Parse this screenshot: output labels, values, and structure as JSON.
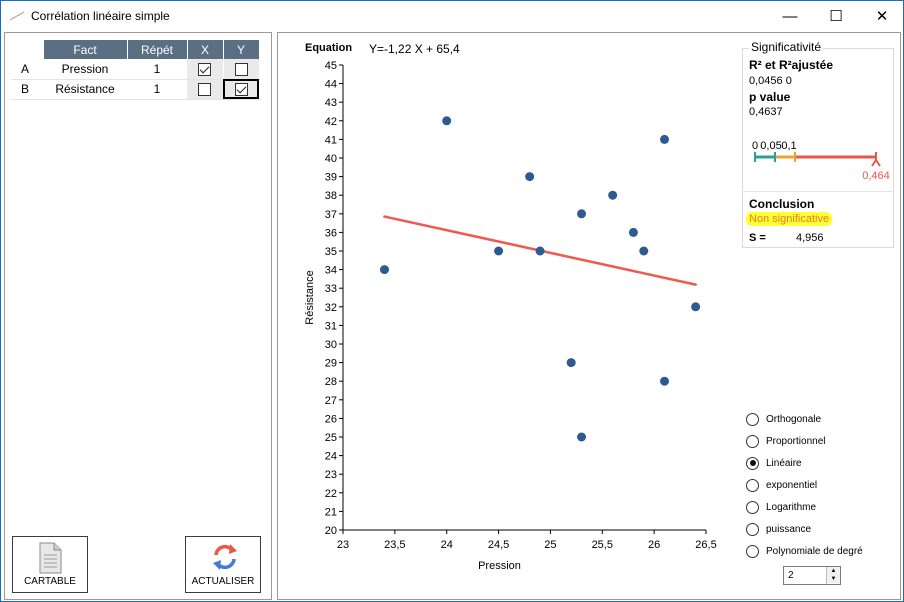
{
  "window": {
    "title": "Corrélation linéaire simple",
    "minimize": "—",
    "maximize": "☐",
    "close": "✕"
  },
  "grid": {
    "headers": [
      "Fact",
      "Répét",
      "X",
      "Y"
    ],
    "rows": [
      {
        "id": "A",
        "fact": "Pression",
        "repet": "1",
        "x": true,
        "y": false
      },
      {
        "id": "B",
        "fact": "Résistance",
        "repet": "1",
        "x": false,
        "y": true
      }
    ]
  },
  "buttons": {
    "cartable": "CARTABLE",
    "actualiser": "ACTUALISER"
  },
  "equation": {
    "label": "Equation",
    "text": "Y=-1,22 X + 65,4"
  },
  "significance": {
    "legend": "Significativité",
    "r2_label": "R² et R²ajustée",
    "r2_values": "0,0456  0",
    "p_label": "p value",
    "p_value": "0,4637",
    "scale_labels": [
      "0",
      "0,05",
      "0,1"
    ],
    "scale_value": "0,464",
    "scale_value_num": 0.464,
    "conclusion_label": "Conclusion",
    "conclusion": "Non significative",
    "s_label": "S =",
    "s_value": "4,956",
    "colors": {
      "teal": "#2aa198",
      "orange": "#f0a030",
      "red": "#e8574a",
      "highlight": "#ffff33",
      "conclusion_text": "#f07a2a"
    }
  },
  "models": {
    "options": [
      "Orthogonale",
      "Proportionnel",
      "Linéaire",
      "exponentiel",
      "Logarithme",
      "puissance",
      "Polynomiale de degré"
    ],
    "selected": "Linéaire",
    "degree": "2"
  },
  "chart_data": {
    "type": "scatter",
    "xlabel": "Pression",
    "ylabel": "Résistance",
    "xlim": [
      23,
      26.5
    ],
    "ylim": [
      20,
      45
    ],
    "x_ticks": [
      "23",
      "23,5",
      "24",
      "24,5",
      "25",
      "25,5",
      "26",
      "26,5"
    ],
    "y_ticks": [
      "20",
      "21",
      "22",
      "23",
      "24",
      "25",
      "26",
      "27",
      "28",
      "29",
      "30",
      "31",
      "32",
      "33",
      "34",
      "35",
      "36",
      "37",
      "38",
      "39",
      "40",
      "41",
      "42",
      "43",
      "44",
      "45"
    ],
    "points": [
      {
        "x": 23.4,
        "y": 34
      },
      {
        "x": 24.0,
        "y": 42
      },
      {
        "x": 24.5,
        "y": 35
      },
      {
        "x": 24.8,
        "y": 39
      },
      {
        "x": 24.9,
        "y": 35
      },
      {
        "x": 25.2,
        "y": 29
      },
      {
        "x": 25.3,
        "y": 37
      },
      {
        "x": 25.3,
        "y": 25
      },
      {
        "x": 25.6,
        "y": 38
      },
      {
        "x": 25.8,
        "y": 36
      },
      {
        "x": 25.9,
        "y": 35
      },
      {
        "x": 26.1,
        "y": 41
      },
      {
        "x": 26.1,
        "y": 28
      },
      {
        "x": 26.4,
        "y": 32
      }
    ],
    "fit": {
      "slope": -1.22,
      "intercept": 65.4,
      "x_from": 23.4,
      "x_to": 26.4
    },
    "grid": false,
    "colors": {
      "points": "#2f5a8f",
      "fit": "#ee5a4e"
    }
  }
}
